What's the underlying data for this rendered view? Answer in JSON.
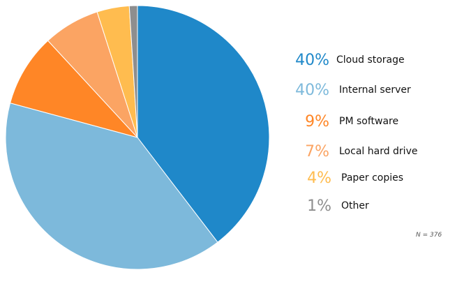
{
  "chart_data": {
    "type": "pie",
    "categories": [
      "Cloud storage",
      "Internal server",
      "PM software",
      "Local hard drive",
      "Paper copies",
      "Other"
    ],
    "values": [
      40,
      40,
      9,
      7,
      4,
      1
    ],
    "display_labels": [
      "40%",
      "40%",
      "9%",
      "7%",
      "4%",
      "1%"
    ],
    "colors": [
      "#1F88C9",
      "#7DB9DB",
      "#FF8626",
      "#FBA463",
      "#FFBC4F",
      "#8E8E8E"
    ],
    "legend_placement": "right",
    "note": "N = 376"
  }
}
